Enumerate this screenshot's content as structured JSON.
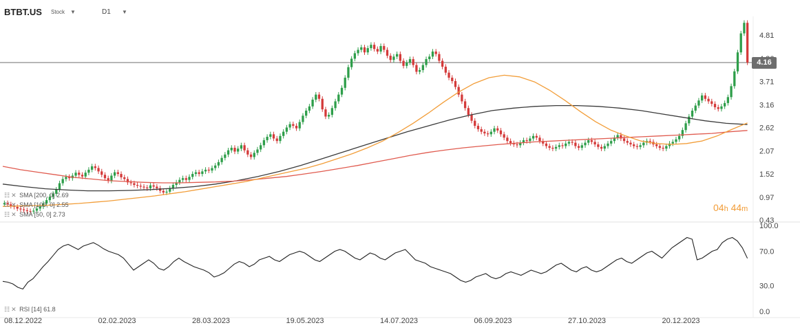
{
  "header": {
    "symbol": "BTBT.US",
    "type": "Stock",
    "timeframe": "D1"
  },
  "indicators": {
    "sma200": "SMA [200, 0] 2.69",
    "sma100": "SMA [100, 0] 2.55",
    "sma50": "SMA [50, 0] 2.73",
    "rsi": "RSI [14] 61.8"
  },
  "countdown": {
    "hours": "04",
    "h": "h",
    "minutes": "44",
    "m": "m"
  },
  "colors": {
    "up": "#2e9e4a",
    "down": "#d43a3a",
    "sma50": "#f29d38",
    "sma100": "#e05a4e",
    "sma200": "#3a3a3a",
    "rsi": "#222222",
    "price_line": "#6d6d6d"
  },
  "chart_data": [
    {
      "type": "candlestick",
      "x_labels": [
        "08.12.2022",
        "02.02.2023",
        "28.03.2023",
        "19.05.2023",
        "14.07.2023",
        "06.09.2023",
        "27.10.2023",
        "20.12.2023"
      ],
      "y_ticks": [
        4.81,
        4.26,
        3.71,
        3.16,
        2.62,
        2.07,
        1.52,
        0.97,
        0.43
      ],
      "ylim": [
        0.43,
        5.25
      ],
      "last_price": "4.16",
      "close": [
        0.83,
        0.8,
        0.76,
        0.74,
        0.7,
        0.68,
        0.66,
        0.64,
        0.63,
        0.65,
        0.7,
        0.75,
        0.82,
        0.9,
        0.98,
        1.05,
        1.15,
        1.3,
        1.4,
        1.45,
        1.42,
        1.48,
        1.55,
        1.5,
        1.46,
        1.55,
        1.62,
        1.7,
        1.66,
        1.58,
        1.5,
        1.42,
        1.36,
        1.48,
        1.56,
        1.52,
        1.44,
        1.4,
        1.32,
        1.3,
        1.26,
        1.24,
        1.22,
        1.2,
        1.18,
        1.25,
        1.22,
        1.18,
        1.12,
        1.08,
        1.1,
        1.18,
        1.26,
        1.32,
        1.38,
        1.42,
        1.38,
        1.45,
        1.52,
        1.56,
        1.52,
        1.58,
        1.62,
        1.6,
        1.66,
        1.72,
        1.8,
        1.9,
        1.98,
        2.08,
        2.14,
        2.05,
        2.12,
        2.2,
        2.08,
        1.98,
        1.92,
        2.02,
        2.1,
        2.2,
        2.32,
        2.4,
        2.46,
        2.36,
        2.3,
        2.42,
        2.52,
        2.62,
        2.7,
        2.66,
        2.6,
        2.75,
        2.9,
        3.02,
        3.12,
        3.28,
        3.4,
        3.3,
        3.05,
        2.88,
        2.92,
        3.08,
        3.24,
        3.4,
        3.56,
        3.8,
        4.05,
        4.25,
        4.38,
        4.46,
        4.52,
        4.4,
        4.5,
        4.58,
        4.48,
        4.42,
        4.55,
        4.46,
        4.32,
        4.22,
        4.3,
        4.36,
        4.2,
        4.08,
        4.16,
        4.24,
        4.1,
        3.94,
        3.98,
        4.1,
        4.24,
        4.3,
        4.42,
        4.36,
        4.2,
        4.06,
        3.92,
        3.8,
        3.72,
        3.58,
        3.4,
        3.24,
        3.08,
        2.92,
        2.78,
        2.66,
        2.58,
        2.52,
        2.48,
        2.46,
        2.52,
        2.6,
        2.55,
        2.46,
        2.38,
        2.3,
        2.25,
        2.22,
        2.2,
        2.26,
        2.32,
        2.3,
        2.36,
        2.42,
        2.38,
        2.3,
        2.24,
        2.18,
        2.14,
        2.12,
        2.16,
        2.2,
        2.18,
        2.24,
        2.28,
        2.26,
        2.18,
        2.14,
        2.2,
        2.26,
        2.32,
        2.28,
        2.22,
        2.16,
        2.12,
        2.18,
        2.24,
        2.3,
        2.38,
        2.44,
        2.36,
        2.3,
        2.26,
        2.22,
        2.18,
        2.16,
        2.2,
        2.26,
        2.3,
        2.28,
        2.22,
        2.18,
        2.14,
        2.12,
        2.18,
        2.24,
        2.28,
        2.34,
        2.42,
        2.56,
        2.72,
        2.88,
        3.02,
        3.14,
        3.26,
        3.38,
        3.3,
        3.24,
        3.18,
        3.1,
        3.06,
        3.12,
        3.2,
        3.34,
        3.6,
        3.95,
        4.4,
        4.85,
        5.1,
        4.16
      ],
      "open": [
        0.8,
        0.83,
        0.8,
        0.76,
        0.74,
        0.7,
        0.68,
        0.66,
        0.64,
        0.63,
        0.65,
        0.7,
        0.75,
        0.82,
        0.9,
        0.98,
        1.05,
        1.15,
        1.3,
        1.4,
        1.45,
        1.42,
        1.48,
        1.55,
        1.5,
        1.46,
        1.55,
        1.62,
        1.7,
        1.66,
        1.58,
        1.5,
        1.42,
        1.36,
        1.48,
        1.56,
        1.52,
        1.44,
        1.4,
        1.32,
        1.3,
        1.26,
        1.24,
        1.22,
        1.2,
        1.18,
        1.25,
        1.22,
        1.18,
        1.12,
        1.08,
        1.1,
        1.18,
        1.26,
        1.32,
        1.38,
        1.42,
        1.38,
        1.45,
        1.52,
        1.56,
        1.52,
        1.58,
        1.62,
        1.6,
        1.66,
        1.72,
        1.8,
        1.9,
        1.98,
        2.08,
        2.14,
        2.05,
        2.12,
        2.2,
        2.08,
        1.98,
        1.92,
        2.02,
        2.1,
        2.2,
        2.32,
        2.4,
        2.46,
        2.36,
        2.3,
        2.42,
        2.52,
        2.62,
        2.7,
        2.66,
        2.6,
        2.75,
        2.9,
        3.02,
        3.12,
        3.28,
        3.4,
        3.3,
        3.05,
        2.88,
        2.92,
        3.08,
        3.24,
        3.4,
        3.56,
        3.8,
        4.05,
        4.25,
        4.38,
        4.46,
        4.52,
        4.4,
        4.5,
        4.58,
        4.48,
        4.42,
        4.55,
        4.46,
        4.32,
        4.22,
        4.3,
        4.36,
        4.2,
        4.08,
        4.16,
        4.24,
        4.1,
        3.94,
        3.98,
        4.1,
        4.24,
        4.3,
        4.42,
        4.36,
        4.2,
        4.06,
        3.92,
        3.8,
        3.72,
        3.58,
        3.4,
        3.24,
        3.08,
        2.92,
        2.78,
        2.66,
        2.58,
        2.52,
        2.48,
        2.46,
        2.52,
        2.6,
        2.55,
        2.46,
        2.38,
        2.3,
        2.25,
        2.22,
        2.2,
        2.26,
        2.32,
        2.3,
        2.36,
        2.42,
        2.38,
        2.3,
        2.24,
        2.18,
        2.14,
        2.12,
        2.16,
        2.2,
        2.18,
        2.24,
        2.28,
        2.26,
        2.18,
        2.14,
        2.2,
        2.26,
        2.32,
        2.28,
        2.22,
        2.16,
        2.12,
        2.18,
        2.24,
        2.3,
        2.38,
        2.44,
        2.36,
        2.3,
        2.26,
        2.22,
        2.18,
        2.16,
        2.2,
        2.26,
        2.3,
        2.28,
        2.22,
        2.18,
        2.14,
        2.12,
        2.18,
        2.24,
        2.28,
        2.34,
        2.42,
        2.56,
        2.72,
        2.88,
        3.02,
        3.14,
        3.26,
        3.38,
        3.3,
        3.24,
        3.18,
        3.1,
        3.06,
        3.12,
        3.2,
        3.34,
        3.6,
        3.95,
        4.4,
        4.85,
        5.1
      ],
      "sma50": [
        0.75,
        0.76,
        0.77,
        0.78,
        0.8,
        0.82,
        0.85,
        0.88,
        0.92,
        0.96,
        1.0,
        1.05,
        1.1,
        1.16,
        1.22,
        1.28,
        1.34,
        1.42,
        1.5,
        1.58,
        1.66,
        1.76,
        1.88,
        2.0,
        2.14,
        2.3,
        2.5,
        2.72,
        2.96,
        3.22,
        3.46,
        3.66,
        3.8,
        3.86,
        3.82,
        3.7,
        3.5,
        3.26,
        3.0,
        2.76,
        2.56,
        2.42,
        2.3,
        2.24,
        2.22,
        2.24,
        2.3,
        2.42,
        2.58,
        2.73
      ],
      "sma100": [
        1.7,
        1.62,
        1.56,
        1.5,
        1.44,
        1.4,
        1.36,
        1.34,
        1.32,
        1.31,
        1.31,
        1.32,
        1.33,
        1.35,
        1.38,
        1.42,
        1.46,
        1.52,
        1.58,
        1.65,
        1.72,
        1.8,
        1.88,
        1.96,
        2.03,
        2.09,
        2.14,
        2.18,
        2.22,
        2.25,
        2.28,
        2.3,
        2.32,
        2.34,
        2.36,
        2.38,
        2.4,
        2.42,
        2.44,
        2.46,
        2.48,
        2.52,
        2.55
      ],
      "sma200": [
        1.28,
        1.22,
        1.17,
        1.14,
        1.12,
        1.12,
        1.13,
        1.15,
        1.18,
        1.22,
        1.28,
        1.36,
        1.46,
        1.58,
        1.72,
        1.88,
        2.04,
        2.2,
        2.36,
        2.52,
        2.66,
        2.8,
        2.92,
        3.02,
        3.08,
        3.12,
        3.14,
        3.14,
        3.12,
        3.08,
        3.02,
        2.94,
        2.86,
        2.78,
        2.72,
        2.69
      ],
      "countdown": "04h 44m"
    },
    {
      "type": "line",
      "name": "RSI [14]",
      "y_ticks": [
        100.0,
        70.0,
        30.0,
        0.0
      ],
      "ylim": [
        0,
        100
      ],
      "values": [
        35,
        34,
        32,
        28,
        26,
        34,
        38,
        45,
        52,
        58,
        65,
        72,
        76,
        78,
        75,
        72,
        76,
        78,
        80,
        77,
        73,
        70,
        68,
        66,
        62,
        55,
        48,
        52,
        56,
        60,
        56,
        50,
        48,
        52,
        58,
        62,
        58,
        55,
        52,
        50,
        48,
        45,
        40,
        42,
        45,
        50,
        55,
        58,
        56,
        52,
        55,
        60,
        62,
        64,
        60,
        58,
        62,
        66,
        68,
        70,
        68,
        64,
        60,
        58,
        62,
        66,
        70,
        72,
        70,
        66,
        62,
        60,
        64,
        68,
        66,
        62,
        60,
        64,
        68,
        70,
        72,
        66,
        60,
        58,
        56,
        52,
        50,
        48,
        46,
        44,
        40,
        36,
        34,
        36,
        40,
        42,
        44,
        40,
        38,
        40,
        44,
        46,
        44,
        42,
        45,
        48,
        46,
        44,
        46,
        50,
        54,
        56,
        52,
        48,
        46,
        50,
        52,
        48,
        46,
        48,
        52,
        56,
        60,
        62,
        58,
        56,
        60,
        64,
        68,
        70,
        66,
        62,
        68,
        74,
        78,
        82,
        86,
        84,
        60,
        62,
        66,
        70,
        72,
        80,
        84,
        86,
        82,
        74,
        61.8
      ],
      "last_value": "61.8"
    }
  ]
}
